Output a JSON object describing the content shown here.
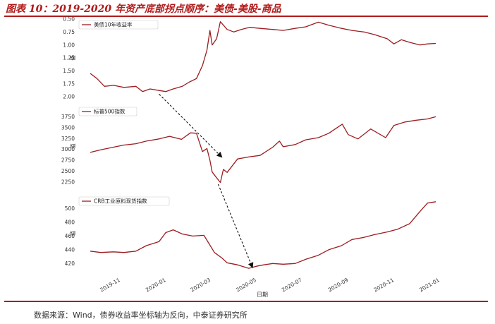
{
  "header": {
    "title": "图表 10：2019-2020 年资产底部拐点顺序：美债-美股-商品"
  },
  "footer": {
    "source": "数据来源：Wind，债券收益率坐标轴为反向，中泰证券研究所"
  },
  "colors": {
    "series": "#9b1d20",
    "accent": "#b11b1b"
  },
  "chart_data": {
    "type": "line",
    "xlabel": "日期",
    "x_ticks": [
      "2019-11",
      "2020-01",
      "2020-03",
      "2020-05",
      "2020-07",
      "2020-09",
      "2020-11",
      "2021-01"
    ],
    "x_range": [
      "2019-10-01",
      "2021-01-05"
    ],
    "annotations": [
      {
        "type": "dashed-arrow",
        "from": [
          "2020-01-01",
          "美债10年收益率",
          1.95
        ],
        "to": [
          "2020-03-25",
          "标普500指数",
          2820
        ]
      },
      {
        "type": "dashed-arrow",
        "from": [
          "2020-03-20",
          "标普500指数",
          2200
        ],
        "to": [
          "2020-05-05",
          "CRB工业原料现货指数",
          414
        ]
      }
    ],
    "panels": [
      {
        "ylabel": "值",
        "inverted": true,
        "ylim": [
          0.5,
          2.0
        ],
        "yticks": [
          0.5,
          0.75,
          1.0,
          1.25,
          1.5,
          1.75,
          2.0
        ],
        "ytick_labels": [
          "0.50",
          "0.75",
          "1.00",
          "1.25",
          "1.50",
          "1.75",
          "2.00"
        ],
        "legend": "美债10年收益率",
        "series": {
          "name": "美债10年收益率",
          "points": [
            [
              "2019-10-01",
              1.55
            ],
            [
              "2019-10-10",
              1.65
            ],
            [
              "2019-10-20",
              1.8
            ],
            [
              "2019-11-01",
              1.78
            ],
            [
              "2019-11-15",
              1.82
            ],
            [
              "2019-12-01",
              1.8
            ],
            [
              "2019-12-10",
              1.9
            ],
            [
              "2019-12-20",
              1.85
            ],
            [
              "2020-01-01",
              1.88
            ],
            [
              "2020-01-10",
              1.9
            ],
            [
              "2020-01-20",
              1.85
            ],
            [
              "2020-02-01",
              1.8
            ],
            [
              "2020-02-10",
              1.72
            ],
            [
              "2020-02-20",
              1.65
            ],
            [
              "2020-02-28",
              1.4
            ],
            [
              "2020-03-05",
              1.1
            ],
            [
              "2020-03-09",
              0.72
            ],
            [
              "2020-03-12",
              1.0
            ],
            [
              "2020-03-18",
              0.88
            ],
            [
              "2020-03-23",
              0.55
            ],
            [
              "2020-04-01",
              0.7
            ],
            [
              "2020-04-10",
              0.75
            ],
            [
              "2020-04-20",
              0.7
            ],
            [
              "2020-05-01",
              0.66
            ],
            [
              "2020-05-15",
              0.68
            ],
            [
              "2020-06-01",
              0.7
            ],
            [
              "2020-06-15",
              0.72
            ],
            [
              "2020-07-01",
              0.68
            ],
            [
              "2020-07-15",
              0.65
            ],
            [
              "2020-08-01",
              0.56
            ],
            [
              "2020-08-15",
              0.62
            ],
            [
              "2020-09-01",
              0.68
            ],
            [
              "2020-09-15",
              0.72
            ],
            [
              "2020-10-01",
              0.75
            ],
            [
              "2020-10-15",
              0.8
            ],
            [
              "2020-11-01",
              0.88
            ],
            [
              "2020-11-10",
              0.98
            ],
            [
              "2020-11-20",
              0.9
            ],
            [
              "2020-12-01",
              0.95
            ],
            [
              "2020-12-15",
              1.0
            ],
            [
              "2020-12-25",
              0.98
            ],
            [
              "2021-01-05",
              0.97
            ]
          ]
        }
      },
      {
        "ylabel": "值",
        "ylim": [
          2150,
          4000
        ],
        "yticks": [
          2250,
          2500,
          2750,
          3000,
          3250,
          3500,
          3750
        ],
        "ytick_labels": [
          "2250",
          "2500",
          "2750",
          "3000",
          "3250",
          "3500",
          "3750"
        ],
        "legend": "标普500指数",
        "series": {
          "name": "标普500指数",
          "points": [
            [
              "2019-10-01",
              2930
            ],
            [
              "2019-10-15",
              2990
            ],
            [
              "2019-11-01",
              3050
            ],
            [
              "2019-11-15",
              3100
            ],
            [
              "2019-12-01",
              3130
            ],
            [
              "2019-12-15",
              3190
            ],
            [
              "2020-01-01",
              3240
            ],
            [
              "2020-01-15",
              3300
            ],
            [
              "2020-01-31",
              3230
            ],
            [
              "2020-02-12",
              3380
            ],
            [
              "2020-02-20",
              3370
            ],
            [
              "2020-02-28",
              2950
            ],
            [
              "2020-03-05",
              3020
            ],
            [
              "2020-03-09",
              2750
            ],
            [
              "2020-03-12",
              2480
            ],
            [
              "2020-03-16",
              2390
            ],
            [
              "2020-03-23",
              2240
            ],
            [
              "2020-03-27",
              2540
            ],
            [
              "2020-04-01",
              2470
            ],
            [
              "2020-04-15",
              2780
            ],
            [
              "2020-05-01",
              2830
            ],
            [
              "2020-05-15",
              2860
            ],
            [
              "2020-06-01",
              3050
            ],
            [
              "2020-06-10",
              3190
            ],
            [
              "2020-06-15",
              3060
            ],
            [
              "2020-07-01",
              3110
            ],
            [
              "2020-07-15",
              3220
            ],
            [
              "2020-08-01",
              3270
            ],
            [
              "2020-08-15",
              3370
            ],
            [
              "2020-09-02",
              3580
            ],
            [
              "2020-09-10",
              3340
            ],
            [
              "2020-09-23",
              3240
            ],
            [
              "2020-10-10",
              3470
            ],
            [
              "2020-10-30",
              3270
            ],
            [
              "2020-11-10",
              3550
            ],
            [
              "2020-11-25",
              3630
            ],
            [
              "2020-12-10",
              3670
            ],
            [
              "2020-12-25",
              3700
            ],
            [
              "2021-01-05",
              3750
            ]
          ]
        }
      },
      {
        "ylabel": "值",
        "ylim": [
          410,
          518
        ],
        "yticks": [
          420,
          440,
          460,
          480,
          500
        ],
        "ytick_labels": [
          "420",
          "440",
          "460",
          "480",
          "500"
        ],
        "legend": "CRB工业原料现货指数",
        "series": {
          "name": "CRB工业原料现货指数",
          "points": [
            [
              "2019-10-01",
              438
            ],
            [
              "2019-10-15",
              436
            ],
            [
              "2019-11-01",
              437
            ],
            [
              "2019-11-15",
              436
            ],
            [
              "2019-12-01",
              438
            ],
            [
              "2019-12-15",
              446
            ],
            [
              "2020-01-01",
              452
            ],
            [
              "2020-01-10",
              465
            ],
            [
              "2020-01-20",
              469
            ],
            [
              "2020-02-01",
              463
            ],
            [
              "2020-02-15",
              460
            ],
            [
              "2020-03-01",
              461
            ],
            [
              "2020-03-15",
              436
            ],
            [
              "2020-03-25",
              428
            ],
            [
              "2020-04-01",
              421
            ],
            [
              "2020-04-15",
              418
            ],
            [
              "2020-04-30",
              413
            ],
            [
              "2020-05-10",
              416
            ],
            [
              "2020-05-20",
              418
            ],
            [
              "2020-06-01",
              420
            ],
            [
              "2020-06-15",
              419
            ],
            [
              "2020-07-01",
              420
            ],
            [
              "2020-07-15",
              426
            ],
            [
              "2020-08-01",
              432
            ],
            [
              "2020-08-15",
              440
            ],
            [
              "2020-09-01",
              446
            ],
            [
              "2020-09-15",
              455
            ],
            [
              "2020-10-01",
              458
            ],
            [
              "2020-10-15",
              462
            ],
            [
              "2020-11-01",
              466
            ],
            [
              "2020-11-15",
              470
            ],
            [
              "2020-12-01",
              478
            ],
            [
              "2020-12-15",
              496
            ],
            [
              "2020-12-25",
              508
            ],
            [
              "2021-01-05",
              510
            ]
          ]
        }
      }
    ]
  }
}
